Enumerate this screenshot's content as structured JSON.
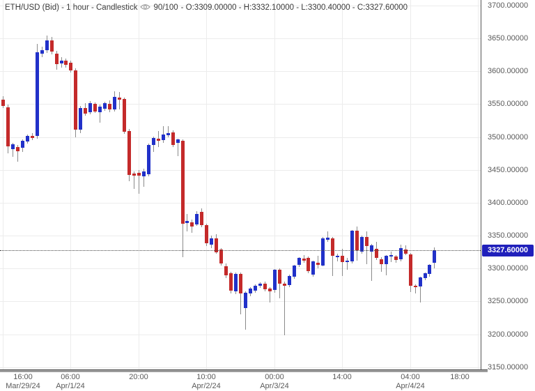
{
  "title": {
    "prefix": "ETH/USD (Bid) - 1 hour - Candlestick",
    "visible_bars": "90/100",
    "ohlc_suffix": "- O:3309.00000 - H:3332.10000 - L:3300.40000 - C:3327.60000"
  },
  "current_price": {
    "label": "3327.60000",
    "value": 3327.6
  },
  "colors": {
    "bull": "#2131c9",
    "bear": "#c42a2a",
    "wick": "#8a8a8a",
    "grid": "#ececec",
    "axis": "#555555",
    "label_text": "#5a5a5a",
    "badge_bg": "#2020bb",
    "badge_text": "#ffffff",
    "price_line": "#444444"
  },
  "chart_data": {
    "type": "candlestick",
    "instrument": "ETH/USD",
    "price_side": "Bid",
    "timeframe": "1 hour",
    "title": "ETH/USD (Bid) - 1 hour - Candlestick",
    "visible_bars": 90,
    "total_bars": 100,
    "last_bar": {
      "open": 3309.0,
      "high": 3332.1,
      "low": 3300.4,
      "close": 3327.6
    },
    "current_price": 3327.6,
    "y_axis": {
      "min": 3150,
      "max": 3700,
      "step": 50,
      "labels": [
        "3700.00000",
        "3650.00000",
        "3600.00000",
        "3550.00000",
        "3500.00000",
        "3450.00000",
        "3400.00000",
        "3350.00000",
        "3300.00000",
        "3250.00000",
        "3200.00000",
        "3150.00000"
      ],
      "values": [
        3700,
        3650,
        3600,
        3550,
        3500,
        3450,
        3400,
        3350,
        3300,
        3250,
        3200,
        3150
      ]
    },
    "x_axis": {
      "ticks": [
        {
          "bar_index": 0,
          "time": "16:00",
          "date": "Mar/29/24"
        },
        {
          "bar_index": 14,
          "time": "06:00",
          "date": "Apr/1/24"
        },
        {
          "bar_index": 28,
          "time": "20:00",
          "date": ""
        },
        {
          "bar_index": 42,
          "time": "10:00",
          "date": "Apr/2/24"
        },
        {
          "bar_index": 56,
          "time": "00:00",
          "date": "Apr/3/24"
        },
        {
          "bar_index": 70,
          "time": "14:00",
          "date": ""
        },
        {
          "bar_index": 84,
          "time": "04:00",
          "date": "Apr/4/24"
        },
        {
          "bar_index": 98,
          "time": "18:00",
          "date": ""
        }
      ]
    },
    "candles_format": [
      "open",
      "high",
      "low",
      "close"
    ],
    "candles": [
      [
        3557,
        3562,
        3544,
        3547
      ],
      [
        3545,
        3549,
        3475,
        3486
      ],
      [
        3482,
        3491,
        3470,
        3489
      ],
      [
        3485,
        3488,
        3463,
        3479
      ],
      [
        3483,
        3496,
        3477,
        3494
      ],
      [
        3493,
        3504,
        3490,
        3502
      ],
      [
        3502,
        3506,
        3495,
        3499
      ],
      [
        3502,
        3642,
        3498,
        3629
      ],
      [
        3627,
        3637,
        3621,
        3632
      ],
      [
        3632,
        3654,
        3628,
        3647
      ],
      [
        3647,
        3652,
        3626,
        3630
      ],
      [
        3627,
        3631,
        3602,
        3611
      ],
      [
        3612,
        3622,
        3606,
        3616
      ],
      [
        3616,
        3619,
        3605,
        3610
      ],
      [
        3613,
        3616,
        3598,
        3601
      ],
      [
        3601,
        3605,
        3500,
        3511
      ],
      [
        3511,
        3547,
        3506,
        3544
      ],
      [
        3544,
        3552,
        3533,
        3536
      ],
      [
        3538,
        3555,
        3535,
        3552
      ],
      [
        3550,
        3553,
        3537,
        3538
      ],
      [
        3538,
        3549,
        3521,
        3546
      ],
      [
        3544,
        3554,
        3540,
        3552
      ],
      [
        3550,
        3556,
        3538,
        3542
      ],
      [
        3542,
        3570,
        3539,
        3561
      ],
      [
        3560,
        3569,
        3542,
        3557
      ],
      [
        3558,
        3560,
        3505,
        3508
      ],
      [
        3509,
        3512,
        3433,
        3442
      ],
      [
        3444,
        3448,
        3421,
        3441
      ],
      [
        3446,
        3450,
        3414,
        3442
      ],
      [
        3441,
        3452,
        3424,
        3448
      ],
      [
        3444,
        3490,
        3440,
        3488
      ],
      [
        3488,
        3501,
        3478,
        3499
      ],
      [
        3498,
        3509,
        3485,
        3495
      ],
      [
        3495,
        3517,
        3492,
        3504
      ],
      [
        3503,
        3517,
        3500,
        3506
      ],
      [
        3507,
        3510,
        3485,
        3488
      ],
      [
        3491,
        3498,
        3472,
        3496
      ],
      [
        3494,
        3496,
        3317,
        3368
      ],
      [
        3369,
        3383,
        3357,
        3372
      ],
      [
        3370,
        3375,
        3355,
        3364
      ],
      [
        3367,
        3387,
        3365,
        3383
      ],
      [
        3386,
        3392,
        3363,
        3366
      ],
      [
        3366,
        3368,
        3334,
        3338
      ],
      [
        3336,
        3350,
        3331,
        3346
      ],
      [
        3346,
        3352,
        3322,
        3325
      ],
      [
        3329,
        3331,
        3304,
        3308
      ],
      [
        3304,
        3308,
        3286,
        3290
      ],
      [
        3293,
        3295,
        3262,
        3267
      ],
      [
        3265,
        3294,
        3261,
        3292
      ],
      [
        3292,
        3294,
        3230,
        3262
      ],
      [
        3240,
        3265,
        3207,
        3263
      ],
      [
        3263,
        3272,
        3258,
        3270
      ],
      [
        3267,
        3276,
        3263,
        3274
      ],
      [
        3274,
        3279,
        3270,
        3277
      ],
      [
        3277,
        3280,
        3265,
        3268
      ],
      [
        3270,
        3272,
        3249,
        3266
      ],
      [
        3267,
        3299,
        3263,
        3298
      ],
      [
        3298,
        3300,
        3254,
        3277
      ],
      [
        3277,
        3280,
        3198,
        3274
      ],
      [
        3275,
        3291,
        3272,
        3289
      ],
      [
        3288,
        3306,
        3285,
        3305
      ],
      [
        3305,
        3317,
        3302,
        3316
      ],
      [
        3315,
        3320,
        3308,
        3312
      ],
      [
        3316,
        3318,
        3293,
        3296
      ],
      [
        3291,
        3312,
        3288,
        3311
      ],
      [
        3309,
        3319,
        3300,
        3306
      ],
      [
        3305,
        3348,
        3303,
        3346
      ],
      [
        3344,
        3357,
        3341,
        3347
      ],
      [
        3346,
        3348,
        3289,
        3319
      ],
      [
        3317,
        3323,
        3311,
        3319
      ],
      [
        3319,
        3330,
        3289,
        3309
      ],
      [
        3310,
        3316,
        3298,
        3312
      ],
      [
        3311,
        3359,
        3308,
        3358
      ],
      [
        3358,
        3364,
        3312,
        3328
      ],
      [
        3326,
        3350,
        3322,
        3348
      ],
      [
        3348,
        3357,
        3307,
        3334
      ],
      [
        3325,
        3337,
        3281,
        3335
      ],
      [
        3330,
        3341,
        3313,
        3316
      ],
      [
        3314,
        3317,
        3295,
        3307
      ],
      [
        3306,
        3321,
        3290,
        3319
      ],
      [
        3318,
        3326,
        3310,
        3320
      ],
      [
        3318,
        3321,
        3309,
        3313
      ],
      [
        3314,
        3336,
        3311,
        3331
      ],
      [
        3329,
        3335,
        3320,
        3323
      ],
      [
        3322,
        3324,
        3265,
        3274
      ],
      [
        3274,
        3276,
        3262,
        3272
      ],
      [
        3273,
        3288,
        3249,
        3287
      ],
      [
        3286,
        3294,
        3282,
        3293
      ],
      [
        3292,
        3307,
        3288,
        3306
      ],
      [
        3309,
        3332.1,
        3300.4,
        3327.6
      ]
    ]
  }
}
